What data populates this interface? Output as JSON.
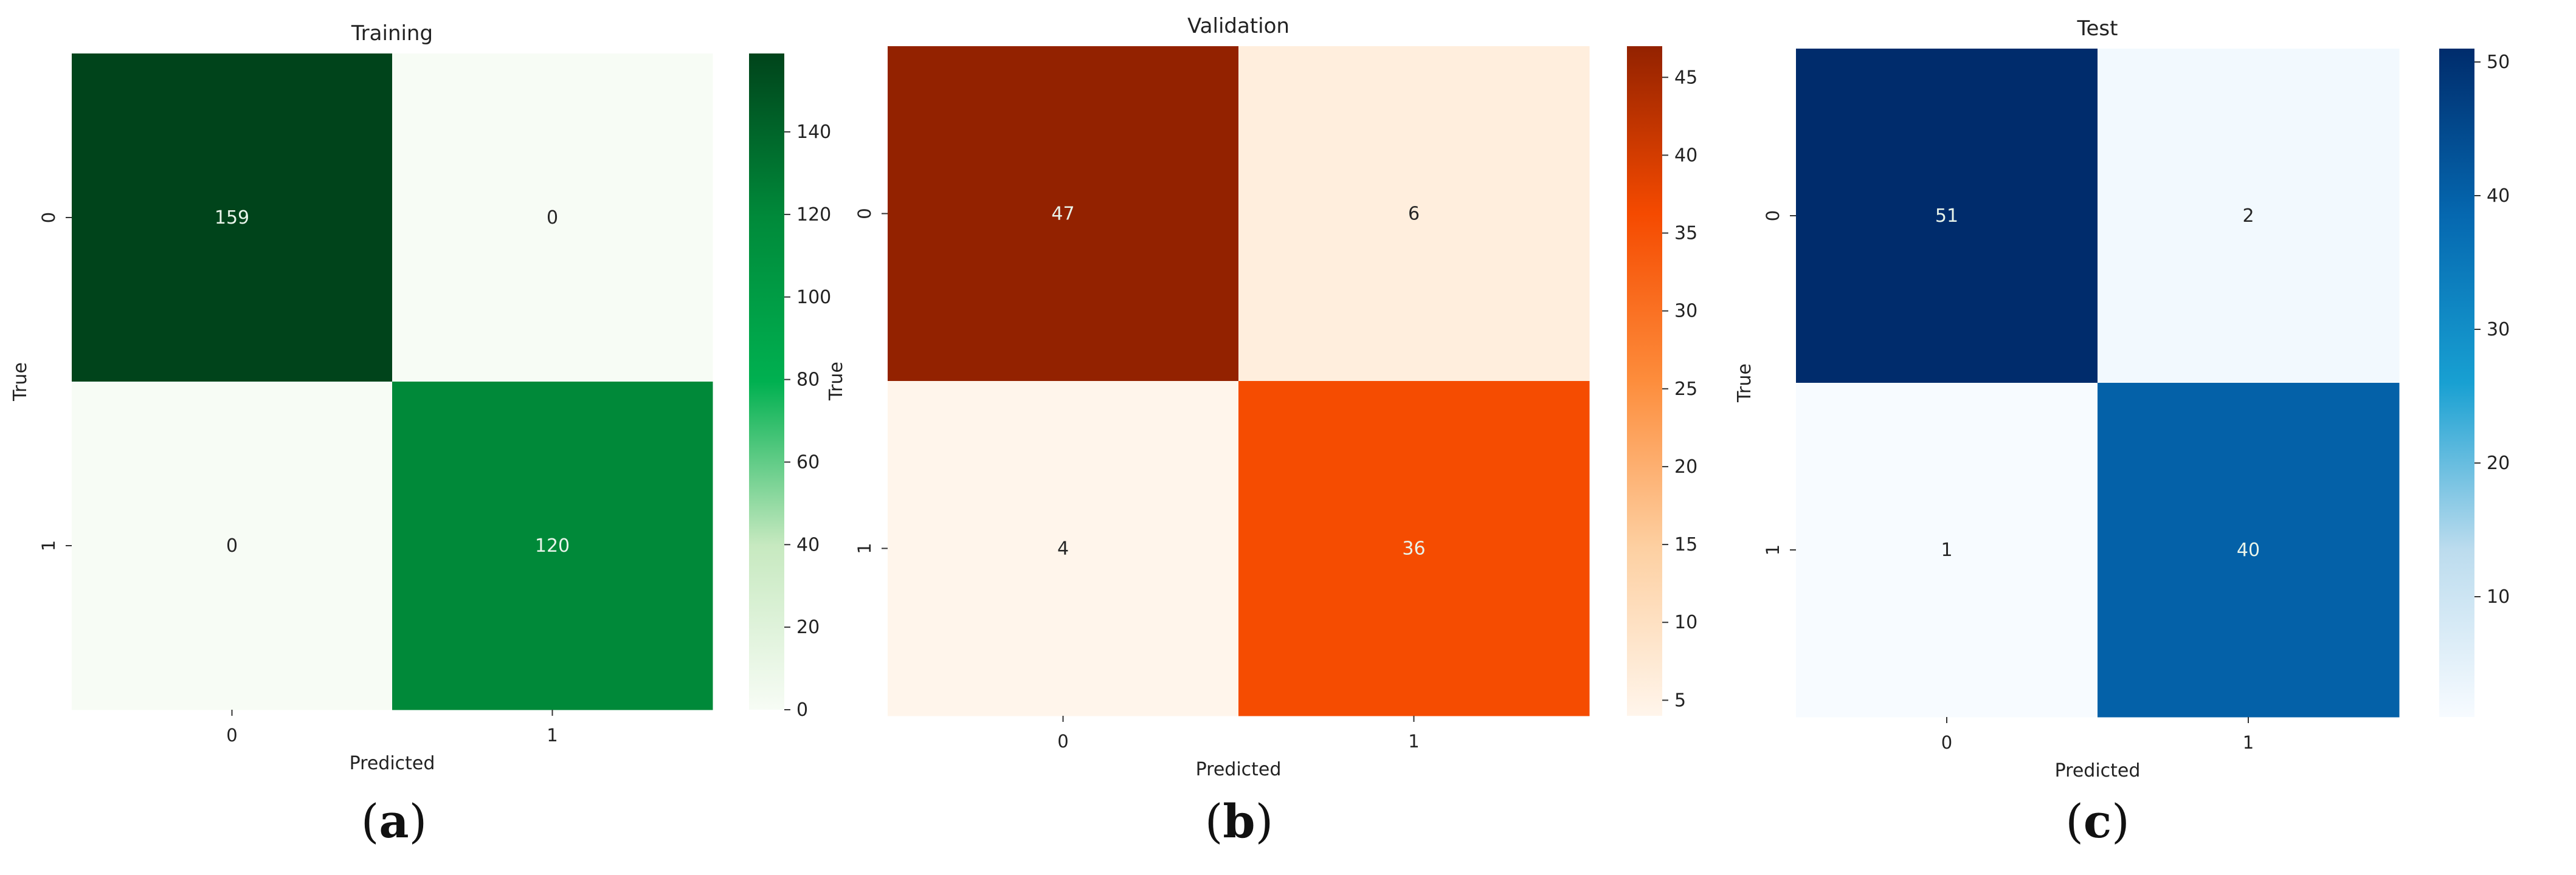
{
  "chart_data": [
    {
      "type": "heatmap",
      "title": "Training",
      "xlabel": "Predicted",
      "ylabel": "True",
      "x_categories": [
        "0",
        "1"
      ],
      "y_categories": [
        "0",
        "1"
      ],
      "values": [
        [
          159,
          0
        ],
        [
          0,
          120
        ]
      ],
      "colorbar": {
        "min": 0,
        "max": 159,
        "ticks": [
          0,
          20,
          40,
          60,
          80,
          100,
          120,
          140
        ],
        "colors": [
          "#f7fcf5",
          "#c7e9c0",
          "#00b050",
          "#008a3a",
          "#00441b"
        ]
      },
      "panel_label": "a"
    },
    {
      "type": "heatmap",
      "title": "Validation",
      "xlabel": "Predicted",
      "ylabel": "True",
      "x_categories": [
        "0",
        "1"
      ],
      "y_categories": [
        "0",
        "1"
      ],
      "values": [
        [
          47,
          6
        ],
        [
          4,
          36
        ]
      ],
      "colorbar": {
        "min": 4,
        "max": 47,
        "ticks": [
          5,
          10,
          15,
          20,
          25,
          30,
          35,
          40,
          45
        ],
        "colors": [
          "#fff5eb",
          "#fdd0a2",
          "#fd8d3c",
          "#f54a00",
          "#932200"
        ]
      },
      "panel_label": "b"
    },
    {
      "type": "heatmap",
      "title": "Test",
      "xlabel": "Predicted",
      "ylabel": "True",
      "x_categories": [
        "0",
        "1"
      ],
      "y_categories": [
        "0",
        "1"
      ],
      "values": [
        [
          51,
          2
        ],
        [
          1,
          40
        ]
      ],
      "colorbar": {
        "min": 1,
        "max": 51,
        "ticks": [
          10,
          20,
          30,
          40,
          50
        ],
        "colors": [
          "#f7fbff",
          "#bcdcee",
          "#18a0d2",
          "#0568b0",
          "#002c6c"
        ]
      },
      "panel_label": "c"
    }
  ]
}
